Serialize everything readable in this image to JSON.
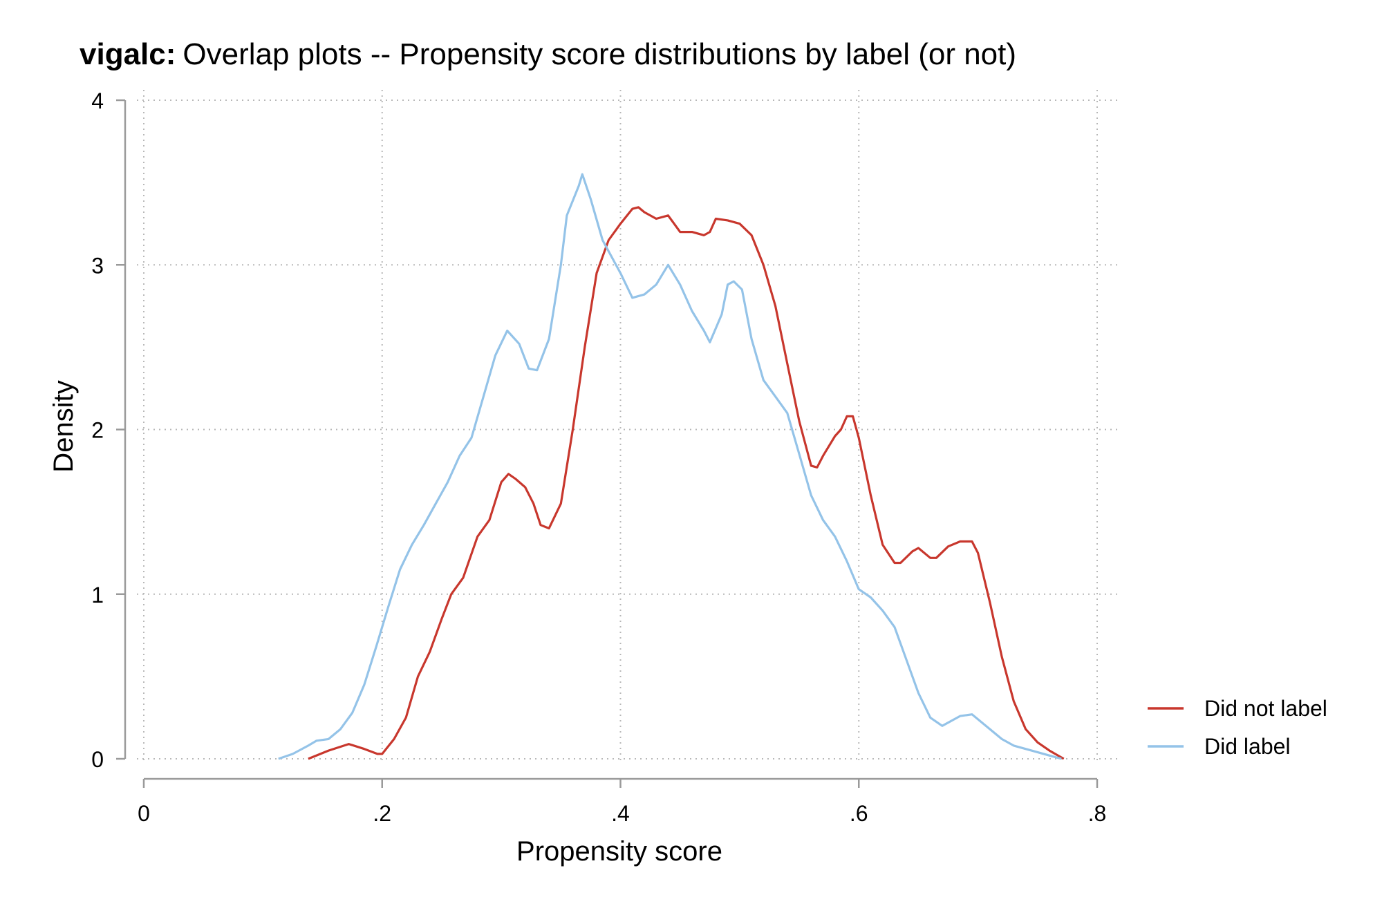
{
  "chart_data": {
    "type": "line",
    "title_prefix": "vigalc:",
    "title": "Overlap plots -- Propensity score distributions by label (or not)",
    "xlabel": "Propensity score",
    "ylabel": "Density",
    "xlim": [
      0,
      0.8
    ],
    "ylim": [
      0,
      4
    ],
    "x_ticks": [
      {
        "value": 0,
        "label": "0"
      },
      {
        "value": 0.2,
        "label": ".2"
      },
      {
        "value": 0.4,
        "label": ".4"
      },
      {
        "value": 0.6,
        "label": ".6"
      },
      {
        "value": 0.8,
        "label": ".8"
      }
    ],
    "y_ticks": [
      {
        "value": 0,
        "label": "0"
      },
      {
        "value": 1,
        "label": "1"
      },
      {
        "value": 2,
        "label": "2"
      },
      {
        "value": 3,
        "label": "3"
      },
      {
        "value": 4,
        "label": "4"
      }
    ],
    "grid": true,
    "legend_position": "right",
    "series": [
      {
        "name": "Did not label",
        "color": "#c8372d",
        "points": [
          [
            0.138,
            0.0
          ],
          [
            0.155,
            0.05
          ],
          [
            0.172,
            0.09
          ],
          [
            0.185,
            0.06
          ],
          [
            0.196,
            0.03
          ],
          [
            0.2,
            0.03
          ],
          [
            0.21,
            0.12
          ],
          [
            0.22,
            0.25
          ],
          [
            0.23,
            0.5
          ],
          [
            0.24,
            0.65
          ],
          [
            0.25,
            0.85
          ],
          [
            0.258,
            1.0
          ],
          [
            0.268,
            1.1
          ],
          [
            0.28,
            1.35
          ],
          [
            0.29,
            1.45
          ],
          [
            0.3,
            1.68
          ],
          [
            0.306,
            1.73
          ],
          [
            0.312,
            1.7
          ],
          [
            0.32,
            1.65
          ],
          [
            0.327,
            1.55
          ],
          [
            0.333,
            1.42
          ],
          [
            0.34,
            1.4
          ],
          [
            0.35,
            1.55
          ],
          [
            0.36,
            2.0
          ],
          [
            0.37,
            2.5
          ],
          [
            0.38,
            2.95
          ],
          [
            0.39,
            3.15
          ],
          [
            0.4,
            3.25
          ],
          [
            0.41,
            3.34
          ],
          [
            0.415,
            3.35
          ],
          [
            0.42,
            3.32
          ],
          [
            0.43,
            3.28
          ],
          [
            0.44,
            3.3
          ],
          [
            0.445,
            3.25
          ],
          [
            0.45,
            3.2
          ],
          [
            0.46,
            3.2
          ],
          [
            0.47,
            3.18
          ],
          [
            0.475,
            3.2
          ],
          [
            0.48,
            3.28
          ],
          [
            0.49,
            3.27
          ],
          [
            0.5,
            3.25
          ],
          [
            0.51,
            3.18
          ],
          [
            0.52,
            3.0
          ],
          [
            0.53,
            2.75
          ],
          [
            0.54,
            2.4
          ],
          [
            0.55,
            2.05
          ],
          [
            0.56,
            1.78
          ],
          [
            0.565,
            1.77
          ],
          [
            0.57,
            1.84
          ],
          [
            0.58,
            1.96
          ],
          [
            0.585,
            2.0
          ],
          [
            0.59,
            2.08
          ],
          [
            0.595,
            2.08
          ],
          [
            0.6,
            1.95
          ],
          [
            0.61,
            1.6
          ],
          [
            0.62,
            1.3
          ],
          [
            0.63,
            1.19
          ],
          [
            0.635,
            1.19
          ],
          [
            0.645,
            1.26
          ],
          [
            0.65,
            1.28
          ],
          [
            0.66,
            1.22
          ],
          [
            0.665,
            1.22
          ],
          [
            0.675,
            1.29
          ],
          [
            0.685,
            1.32
          ],
          [
            0.695,
            1.32
          ],
          [
            0.7,
            1.25
          ],
          [
            0.71,
            0.95
          ],
          [
            0.72,
            0.62
          ],
          [
            0.73,
            0.35
          ],
          [
            0.74,
            0.18
          ],
          [
            0.75,
            0.1
          ],
          [
            0.76,
            0.05
          ],
          [
            0.772,
            0.0
          ]
        ]
      },
      {
        "name": "Did label",
        "color": "#94c3e8",
        "points": [
          [
            0.113,
            0.0
          ],
          [
            0.125,
            0.03
          ],
          [
            0.138,
            0.08
          ],
          [
            0.145,
            0.11
          ],
          [
            0.155,
            0.12
          ],
          [
            0.165,
            0.18
          ],
          [
            0.175,
            0.28
          ],
          [
            0.185,
            0.45
          ],
          [
            0.195,
            0.68
          ],
          [
            0.205,
            0.92
          ],
          [
            0.215,
            1.15
          ],
          [
            0.225,
            1.3
          ],
          [
            0.235,
            1.42
          ],
          [
            0.245,
            1.55
          ],
          [
            0.255,
            1.68
          ],
          [
            0.265,
            1.84
          ],
          [
            0.275,
            1.95
          ],
          [
            0.285,
            2.2
          ],
          [
            0.295,
            2.45
          ],
          [
            0.305,
            2.6
          ],
          [
            0.315,
            2.52
          ],
          [
            0.323,
            2.37
          ],
          [
            0.33,
            2.36
          ],
          [
            0.34,
            2.55
          ],
          [
            0.35,
            3.0
          ],
          [
            0.355,
            3.3
          ],
          [
            0.365,
            3.48
          ],
          [
            0.368,
            3.55
          ],
          [
            0.375,
            3.4
          ],
          [
            0.385,
            3.15
          ],
          [
            0.4,
            2.95
          ],
          [
            0.41,
            2.8
          ],
          [
            0.42,
            2.82
          ],
          [
            0.43,
            2.88
          ],
          [
            0.44,
            3.0
          ],
          [
            0.45,
            2.88
          ],
          [
            0.46,
            2.72
          ],
          [
            0.47,
            2.6
          ],
          [
            0.475,
            2.53
          ],
          [
            0.485,
            2.7
          ],
          [
            0.49,
            2.88
          ],
          [
            0.495,
            2.9
          ],
          [
            0.502,
            2.85
          ],
          [
            0.51,
            2.55
          ],
          [
            0.52,
            2.3
          ],
          [
            0.53,
            2.2
          ],
          [
            0.54,
            2.1
          ],
          [
            0.55,
            1.85
          ],
          [
            0.56,
            1.6
          ],
          [
            0.57,
            1.45
          ],
          [
            0.58,
            1.35
          ],
          [
            0.59,
            1.2
          ],
          [
            0.6,
            1.03
          ],
          [
            0.61,
            0.98
          ],
          [
            0.62,
            0.9
          ],
          [
            0.63,
            0.8
          ],
          [
            0.64,
            0.6
          ],
          [
            0.65,
            0.4
          ],
          [
            0.66,
            0.25
          ],
          [
            0.67,
            0.2
          ],
          [
            0.685,
            0.26
          ],
          [
            0.695,
            0.27
          ],
          [
            0.71,
            0.18
          ],
          [
            0.72,
            0.12
          ],
          [
            0.73,
            0.08
          ],
          [
            0.745,
            0.05
          ],
          [
            0.77,
            0.0
          ]
        ]
      }
    ]
  }
}
